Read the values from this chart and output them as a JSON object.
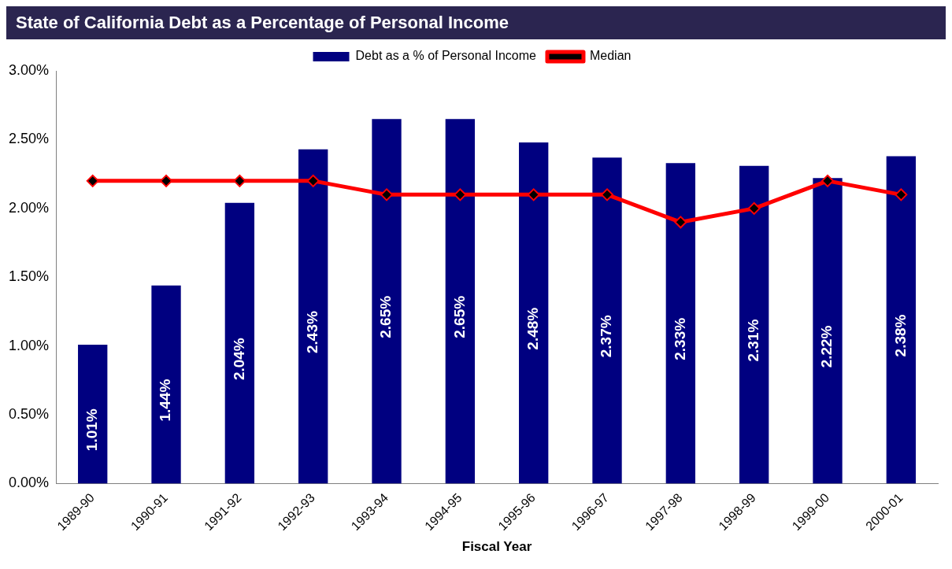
{
  "chart_data": {
    "type": "bar",
    "title": "State of California Debt as a Percentage of Personal Income",
    "xlabel": "Fiscal Year",
    "categories": [
      "1989-90",
      "1990-91",
      "1991-92",
      "1992-93",
      "1993-94",
      "1994-95",
      "1995-96",
      "1996-97",
      "1997-98",
      "1998-99",
      "1999-00",
      "2000-01"
    ],
    "series": [
      {
        "name": "Debt as a % of Personal Income",
        "color": "#000080",
        "values": [
          1.01,
          1.44,
          2.04,
          2.43,
          2.65,
          2.65,
          2.48,
          2.37,
          2.33,
          2.31,
          2.22,
          2.38
        ],
        "value_labels": [
          "1.01%",
          "1.44%",
          "2.04%",
          "2.43%",
          "2.65%",
          "2.65%",
          "2.48%",
          "2.37%",
          "2.33%",
          "2.31%",
          "2.22%",
          "2.38%"
        ]
      },
      {
        "name": "Median",
        "type": "line",
        "color": "#ff0000",
        "marker": "diamond",
        "values": [
          2.2,
          2.2,
          2.2,
          2.2,
          2.1,
          2.1,
          2.1,
          2.1,
          1.9,
          2.0,
          2.2,
          2.1
        ]
      }
    ],
    "ylim": [
      0,
      3
    ],
    "yticks": [
      {
        "value": 0,
        "label": "0.00%"
      },
      {
        "value": 0.5,
        "label": "0.50%"
      },
      {
        "value": 1,
        "label": "1.00%"
      },
      {
        "value": 1.5,
        "label": "1.50%"
      },
      {
        "value": 2,
        "label": "2.00%"
      },
      {
        "value": 2.5,
        "label": "2.50%"
      },
      {
        "value": 3,
        "label": "3.00%"
      }
    ],
    "grid": false,
    "legend": "top"
  }
}
